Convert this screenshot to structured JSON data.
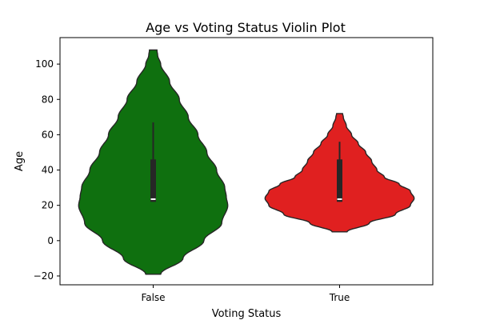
{
  "chart_data": {
    "type": "violin",
    "title": "Age vs Voting Status Violin Plot",
    "xlabel": "Voting Status",
    "ylabel": "Age",
    "ylim": [
      -25,
      115
    ],
    "yticks": [
      -20,
      0,
      20,
      40,
      60,
      80,
      100
    ],
    "categories": [
      "False",
      "True"
    ],
    "colors": [
      "#0f700f",
      "#e02020"
    ],
    "grid": false,
    "series": [
      {
        "category": "False",
        "min": 22,
        "q1": 22,
        "median": 23.5,
        "q3": 46,
        "max": 67,
        "range": [
          -19,
          108
        ],
        "profile": [
          [
            -19,
            0.1
          ],
          [
            -10,
            0.4
          ],
          [
            0,
            0.68
          ],
          [
            10,
            0.92
          ],
          [
            20,
            1.0
          ],
          [
            25,
            0.98
          ],
          [
            30,
            0.96
          ],
          [
            40,
            0.85
          ],
          [
            50,
            0.72
          ],
          [
            60,
            0.6
          ],
          [
            70,
            0.47
          ],
          [
            80,
            0.35
          ],
          [
            90,
            0.22
          ],
          [
            100,
            0.1
          ],
          [
            105,
            0.06
          ],
          [
            108,
            0.05
          ]
        ]
      },
      {
        "category": "True",
        "min": 22,
        "q1": 22,
        "median": 23.5,
        "q3": 46,
        "max": 56,
        "range": [
          5,
          72
        ],
        "profile": [
          [
            5,
            0.1
          ],
          [
            10,
            0.4
          ],
          [
            15,
            0.75
          ],
          [
            20,
            0.95
          ],
          [
            24,
            1.0
          ],
          [
            28,
            0.95
          ],
          [
            32,
            0.8
          ],
          [
            36,
            0.6
          ],
          [
            40,
            0.5
          ],
          [
            45,
            0.43
          ],
          [
            50,
            0.35
          ],
          [
            55,
            0.25
          ],
          [
            60,
            0.16
          ],
          [
            65,
            0.09
          ],
          [
            70,
            0.05
          ],
          [
            72,
            0.04
          ]
        ]
      }
    ]
  }
}
